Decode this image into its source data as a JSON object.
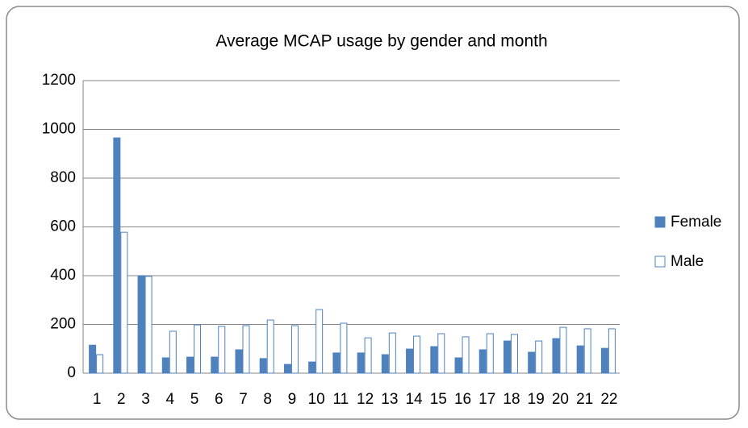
{
  "chart_data": {
    "type": "bar",
    "title": "Average MCAP usage by gender and month",
    "categories": [
      "1",
      "2",
      "3",
      "4",
      "5",
      "6",
      "7",
      "8",
      "9",
      "10",
      "11",
      "12",
      "13",
      "14",
      "15",
      "16",
      "17",
      "18",
      "19",
      "20",
      "21",
      "22"
    ],
    "series": [
      {
        "name": "Female",
        "color": "#4f81bd",
        "edgecolor": "#4f81bd",
        "values": [
          115,
          965,
          400,
          63,
          66,
          66,
          96,
          60,
          36,
          46,
          83,
          83,
          76,
          99,
          109,
          63,
          96,
          132,
          86,
          142,
          112,
          102
        ]
      },
      {
        "name": "Male",
        "color": "#ffffff",
        "edgecolor": "#4f81bd",
        "values": [
          76,
          578,
          397,
          172,
          198,
          192,
          195,
          218,
          195,
          261,
          205,
          145,
          165,
          152,
          162,
          149,
          162,
          159,
          132,
          188,
          182,
          182
        ]
      }
    ],
    "ylim": [
      0,
      1200
    ],
    "yticks": [
      0,
      200,
      400,
      600,
      800,
      1000,
      1200
    ],
    "grid": true,
    "legend": "right"
  }
}
